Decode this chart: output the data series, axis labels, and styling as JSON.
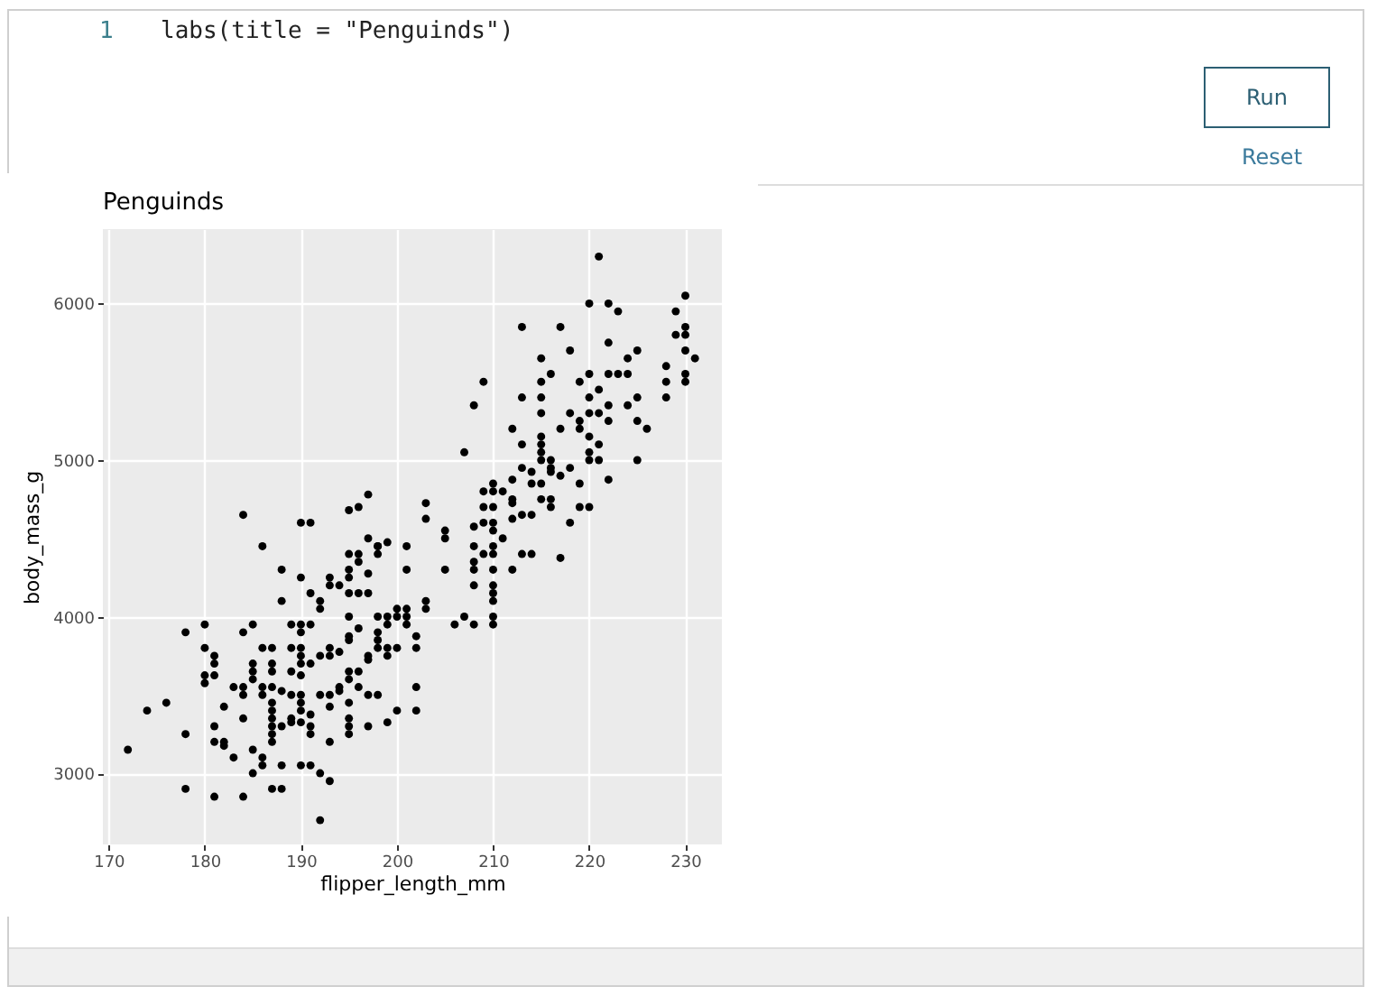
{
  "chart_data": {
    "type": "scatter",
    "title": "Penguinds",
    "xlabel": "flipper_length_mm",
    "ylabel": "body_mass_g",
    "annotations": [
      "1",
      "labs(title = \"Penguinds\")",
      "Run",
      "Reset"
    ],
    "x": [
      184,
      186,
      190,
      191,
      195,
      196,
      197,
      197,
      198,
      199,
      201,
      221,
      220,
      222,
      223,
      230,
      229,
      229,
      230,
      230,
      230,
      231,
      213,
      217,
      218,
      215,
      216,
      209,
      208,
      213,
      215,
      215,
      219,
      220,
      221,
      220,
      222,
      223,
      224,
      224,
      225,
      222,
      215,
      218,
      219,
      219,
      220,
      221,
      222,
      222,
      225,
      224,
      225,
      226,
      228,
      228,
      228,
      230,
      230,
      212,
      213,
      217,
      215,
      215,
      215,
      215,
      216,
      216,
      220,
      221,
      220,
      220,
      221,
      225,
      222,
      207,
      213,
      214,
      212,
      214,
      215,
      216,
      217,
      218,
      219,
      210,
      209,
      210,
      211,
      209,
      210,
      212,
      212,
      215,
      216,
      216,
      213,
      214,
      212,
      219,
      220,
      218,
      203,
      203,
      205,
      205,
      208,
      209,
      210,
      210,
      208,
      210,
      211,
      188,
      190,
      191,
      192,
      192,
      193,
      193,
      194,
      195,
      195,
      196,
      196,
      195,
      197,
      198,
      198,
      201,
      188,
      195,
      196,
      197,
      195,
      178,
      180,
      184,
      185,
      180,
      181,
      181,
      181,
      180,
      180,
      176,
      174,
      172,
      178,
      181,
      181,
      182,
      182,
      183,
      178,
      181,
      184,
      185,
      185,
      184,
      182,
      183,
      184,
      184,
      185,
      185,
      185,
      186,
      187,
      187,
      187,
      186,
      186,
      187,
      188,
      187,
      187,
      187,
      187,
      187,
      187,
      186,
      186,
      188,
      187,
      188,
      189,
      190,
      189,
      190,
      190,
      191,
      190,
      190,
      190,
      191,
      192,
      189,
      189,
      190,
      190,
      190,
      189,
      189,
      190,
      191,
      188,
      191,
      191,
      190,
      191,
      192,
      192,
      193,
      193,
      192,
      193,
      193,
      194,
      194,
      193,
      193,
      194,
      195,
      195,
      196,
      195,
      195,
      196,
      195,
      195,
      195,
      195,
      197,
      196,
      197,
      197,
      197,
      198,
      198,
      199,
      199,
      198,
      198,
      199,
      199,
      200,
      201,
      200,
      201,
      201,
      200,
      202,
      199,
      200,
      202,
      198,
      202,
      202,
      203,
      203,
      205,
      206,
      207,
      208,
      208,
      208,
      208,
      209,
      210,
      210,
      210,
      210,
      210,
      210,
      210,
      212,
      213,
      214,
      217
    ],
    "values": [
      4650,
      4450,
      4600,
      4600,
      4680,
      4700,
      4780,
      4500,
      4450,
      4475,
      4450,
      6300,
      6000,
      6000,
      5950,
      6050,
      5950,
      5800,
      5800,
      5850,
      5700,
      5650,
      5850,
      5850,
      5700,
      5650,
      5550,
      5500,
      5350,
      5400,
      5500,
      5400,
      5500,
      5550,
      5450,
      5400,
      5550,
      5550,
      5550,
      5650,
      5700,
      5750,
      5300,
      5300,
      5250,
      5200,
      5300,
      5300,
      5350,
      5250,
      5400,
      5350,
      5250,
      5200,
      5600,
      5500,
      5400,
      5550,
      5500,
      5200,
      5100,
      5200,
      5150,
      5100,
      5050,
      5000,
      5000,
      4950,
      5150,
      5100,
      5050,
      5000,
      5000,
      5000,
      4875,
      5050,
      4950,
      4925,
      4875,
      4850,
      4850,
      4925,
      4900,
      4950,
      4850,
      4850,
      4800,
      4800,
      4800,
      4700,
      4700,
      4750,
      4725,
      4750,
      4750,
      4700,
      4650,
      4650,
      4625,
      4700,
      4700,
      4600,
      4725,
      4625,
      4550,
      4500,
      4575,
      4600,
      4600,
      4550,
      4450,
      4450,
      4500,
      4300,
      4250,
      4150,
      4100,
      4050,
      4250,
      4200,
      4200,
      4300,
      4250,
      4400,
      4350,
      4400,
      4275,
      4450,
      4400,
      4300,
      4100,
      4150,
      4150,
      4150,
      4000,
      3900,
      3950,
      3900,
      3950,
      3800,
      3750,
      3700,
      3625,
      3625,
      3575,
      3450,
      3400,
      3150,
      3250,
      3300,
      3200,
      3200,
      3175,
      3100,
      2900,
      2850,
      2850,
      3000,
      3150,
      3350,
      3425,
      3550,
      3550,
      3500,
      3700,
      3650,
      3600,
      3800,
      3800,
      3700,
      3650,
      3550,
      3500,
      3550,
      3525,
      3450,
      3400,
      3350,
      3300,
      3250,
      3200,
      3100,
      3050,
      3050,
      2900,
      2900,
      3800,
      3800,
      3950,
      3950,
      3900,
      3950,
      3750,
      3700,
      3625,
      3700,
      3750,
      3650,
      3500,
      3500,
      3450,
      3400,
      3350,
      3325,
      3325,
      3375,
      3300,
      3300,
      3250,
      3050,
      3050,
      3000,
      2700,
      2950,
      3200,
      3500,
      3500,
      3425,
      3550,
      3525,
      3800,
      3750,
      3775,
      3875,
      3850,
      3925,
      3650,
      3600,
      3650,
      3450,
      3350,
      3300,
      3250,
      3300,
      3550,
      3500,
      3725,
      3750,
      3850,
      3800,
      3800,
      3750,
      4000,
      3900,
      4000,
      3950,
      4050,
      4050,
      4000,
      4000,
      3950,
      3800,
      3875,
      3325,
      3400,
      3400,
      3500,
      3800,
      3550,
      4100,
      4050,
      4300,
      3950,
      4000,
      3950,
      4350,
      4300,
      4200,
      4400,
      4400,
      4300,
      4200,
      4150,
      4100,
      4000,
      3950,
      4300,
      4400,
      4400,
      4375
    ],
    "color": "#000000",
    "marker": "circle",
    "grid": true,
    "xlim": [
      169.4,
      233.8
    ],
    "xticks": [
      170,
      180,
      190,
      200,
      210,
      220,
      230
    ],
    "ylim": [
      2545,
      6475
    ],
    "yticks": [
      3000,
      4000,
      5000,
      6000
    ]
  }
}
